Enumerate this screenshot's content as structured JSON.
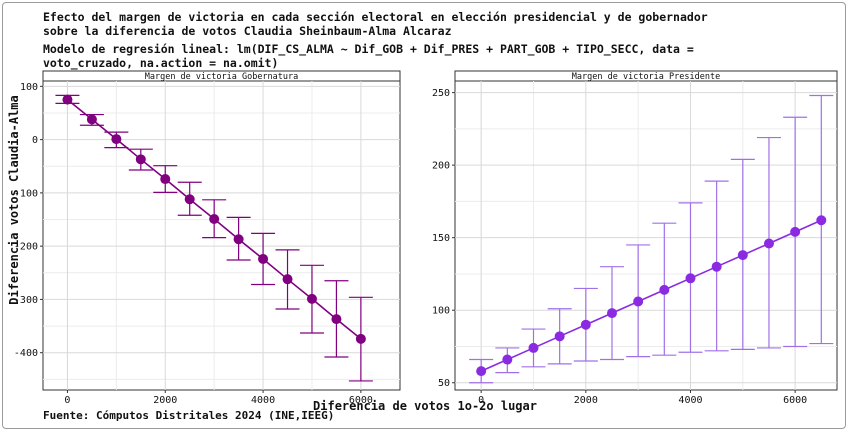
{
  "title": "Efecto del margen de victoria en cada sección electoral en elección presidencial y de gobernador\nsobre la diferencia de votos Claudia Sheinbaum-Alma Alcaraz",
  "subtitle": "Modelo de regresión lineal: lm(DIF_CS_ALMA ~ Dif_GOB + Dif_PRES + PART_GOB + TIPO_SECC, data =\nvoto_cruzado, na.action = na.omit)",
  "caption": "Fuente: Cómputos Distritales 2024 (INE,IEEG)",
  "colors": {
    "gobernatura": "#800080",
    "presidente": "#8a2be2",
    "presidente_bars": "#a070e8"
  },
  "chart_data": {
    "type": "line",
    "xlabel": "Diferencia de votos 1o-2o lugar",
    "ylabel": "Diferencia votos Claudia-Alma",
    "grid": true,
    "panels": [
      {
        "strip": "Margen de victoria Gobernatura",
        "xlim": [
          -500,
          6800
        ],
        "ylim": [
          -470,
          110
        ],
        "xticks": [
          0,
          2000,
          4000,
          6000
        ],
        "yticks": [
          100,
          0,
          -100,
          -200,
          -300,
          -400
        ],
        "series": [
          {
            "x": [
              0,
              500,
              1000,
              1500,
              2000,
              2500,
              3000,
              3500,
              4000,
              4500,
              5000,
              5500,
              6000
            ],
            "y": [
              75,
              38,
              1,
              -37,
              -74,
              -112,
              -149,
              -187,
              -224,
              -262,
              -299,
              -337,
              -374
            ],
            "lower": [
              68,
              27,
              -15,
              -57,
              -99,
              -142,
              -184,
              -226,
              -272,
              -318,
              -363,
              -408,
              -453
            ],
            "upper": [
              83,
              47,
              14,
              -18,
              -49,
              -80,
              -113,
              -146,
              -176,
              -207,
              -236,
              -265,
              -296
            ]
          }
        ]
      },
      {
        "strip": "Margen de victoria Presidente",
        "xlim": [
          -500,
          6800
        ],
        "ylim": [
          45,
          258
        ],
        "xticks": [
          0,
          2000,
          4000,
          6000
        ],
        "yticks": [
          250,
          200,
          150,
          100,
          50
        ],
        "series": [
          {
            "x": [
              0,
              500,
              1000,
              1500,
              2000,
              2500,
              3000,
              3500,
              4000,
              4500,
              5000,
              5500,
              6000,
              6500
            ],
            "y": [
              58,
              66,
              74,
              82,
              90,
              98,
              106,
              114,
              122,
              130,
              138,
              146,
              154,
              162
            ],
            "lower": [
              50,
              57,
              61,
              63,
              65,
              66,
              68,
              69,
              71,
              72,
              73,
              74,
              75,
              77
            ],
            "upper": [
              66,
              74,
              87,
              101,
              115,
              130,
              145,
              160,
              174,
              189,
              204,
              219,
              233,
              248
            ]
          }
        ]
      }
    ]
  }
}
